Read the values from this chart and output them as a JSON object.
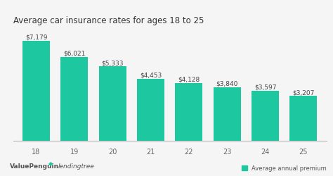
{
  "title": "Average car insurance rates for ages 18 to 25",
  "categories": [
    "18",
    "19",
    "20",
    "21",
    "22",
    "23",
    "24",
    "25"
  ],
  "values": [
    7179,
    6021,
    5333,
    4453,
    4128,
    3840,
    3597,
    3207
  ],
  "labels": [
    "$7,179",
    "$6,021",
    "$5,333",
    "$4,453",
    "$4,128",
    "$3,840",
    "$3,597",
    "$3,207"
  ],
  "bar_color": "#1DC8A0",
  "background_color": "#f5f5f5",
  "title_fontsize": 8.5,
  "label_fontsize": 6.5,
  "tick_fontsize": 7,
  "legend_label": "Average annual premium",
  "footer_left1": "ValuePenguin",
  "footer_left2": "lendingtree",
  "ylim": [
    0,
    8500
  ]
}
